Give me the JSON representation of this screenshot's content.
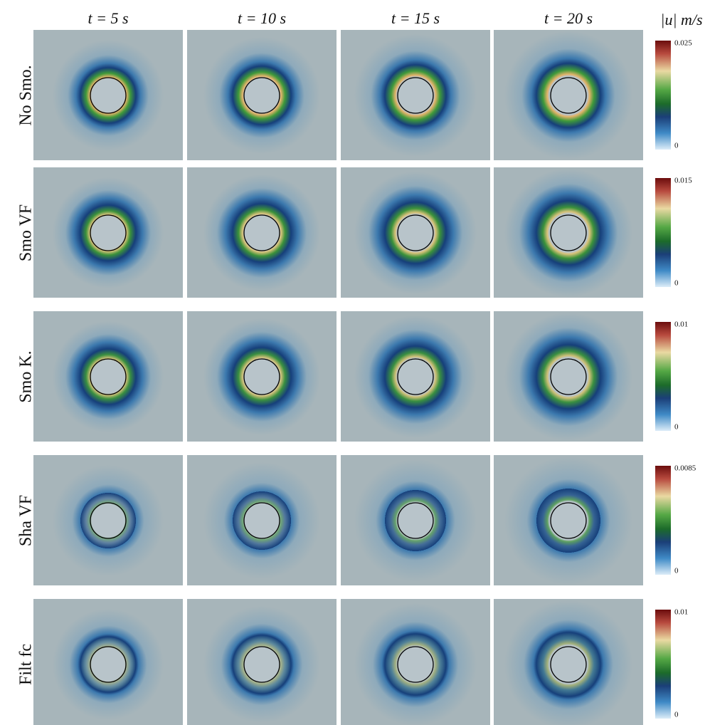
{
  "columns": [
    "t = 5 s",
    "t = 10 s",
    "t = 15 s",
    "t = 20 s"
  ],
  "unit_header": "|u|  m/s",
  "rows": [
    {
      "label": "No Smo.",
      "colorbar_max": 0.025,
      "colorbar_min": 0
    },
    {
      "label": "Smo VF",
      "colorbar_max": 0.015,
      "colorbar_min": 0
    },
    {
      "label": "Smo K.",
      "colorbar_max": 0.01,
      "colorbar_min": 0
    },
    {
      "label": "Sha VF",
      "colorbar_max": 0.0085,
      "colorbar_min": 0
    },
    {
      "label": "Filt fc",
      "colorbar_max": 0.01,
      "colorbar_min": 0
    }
  ]
}
